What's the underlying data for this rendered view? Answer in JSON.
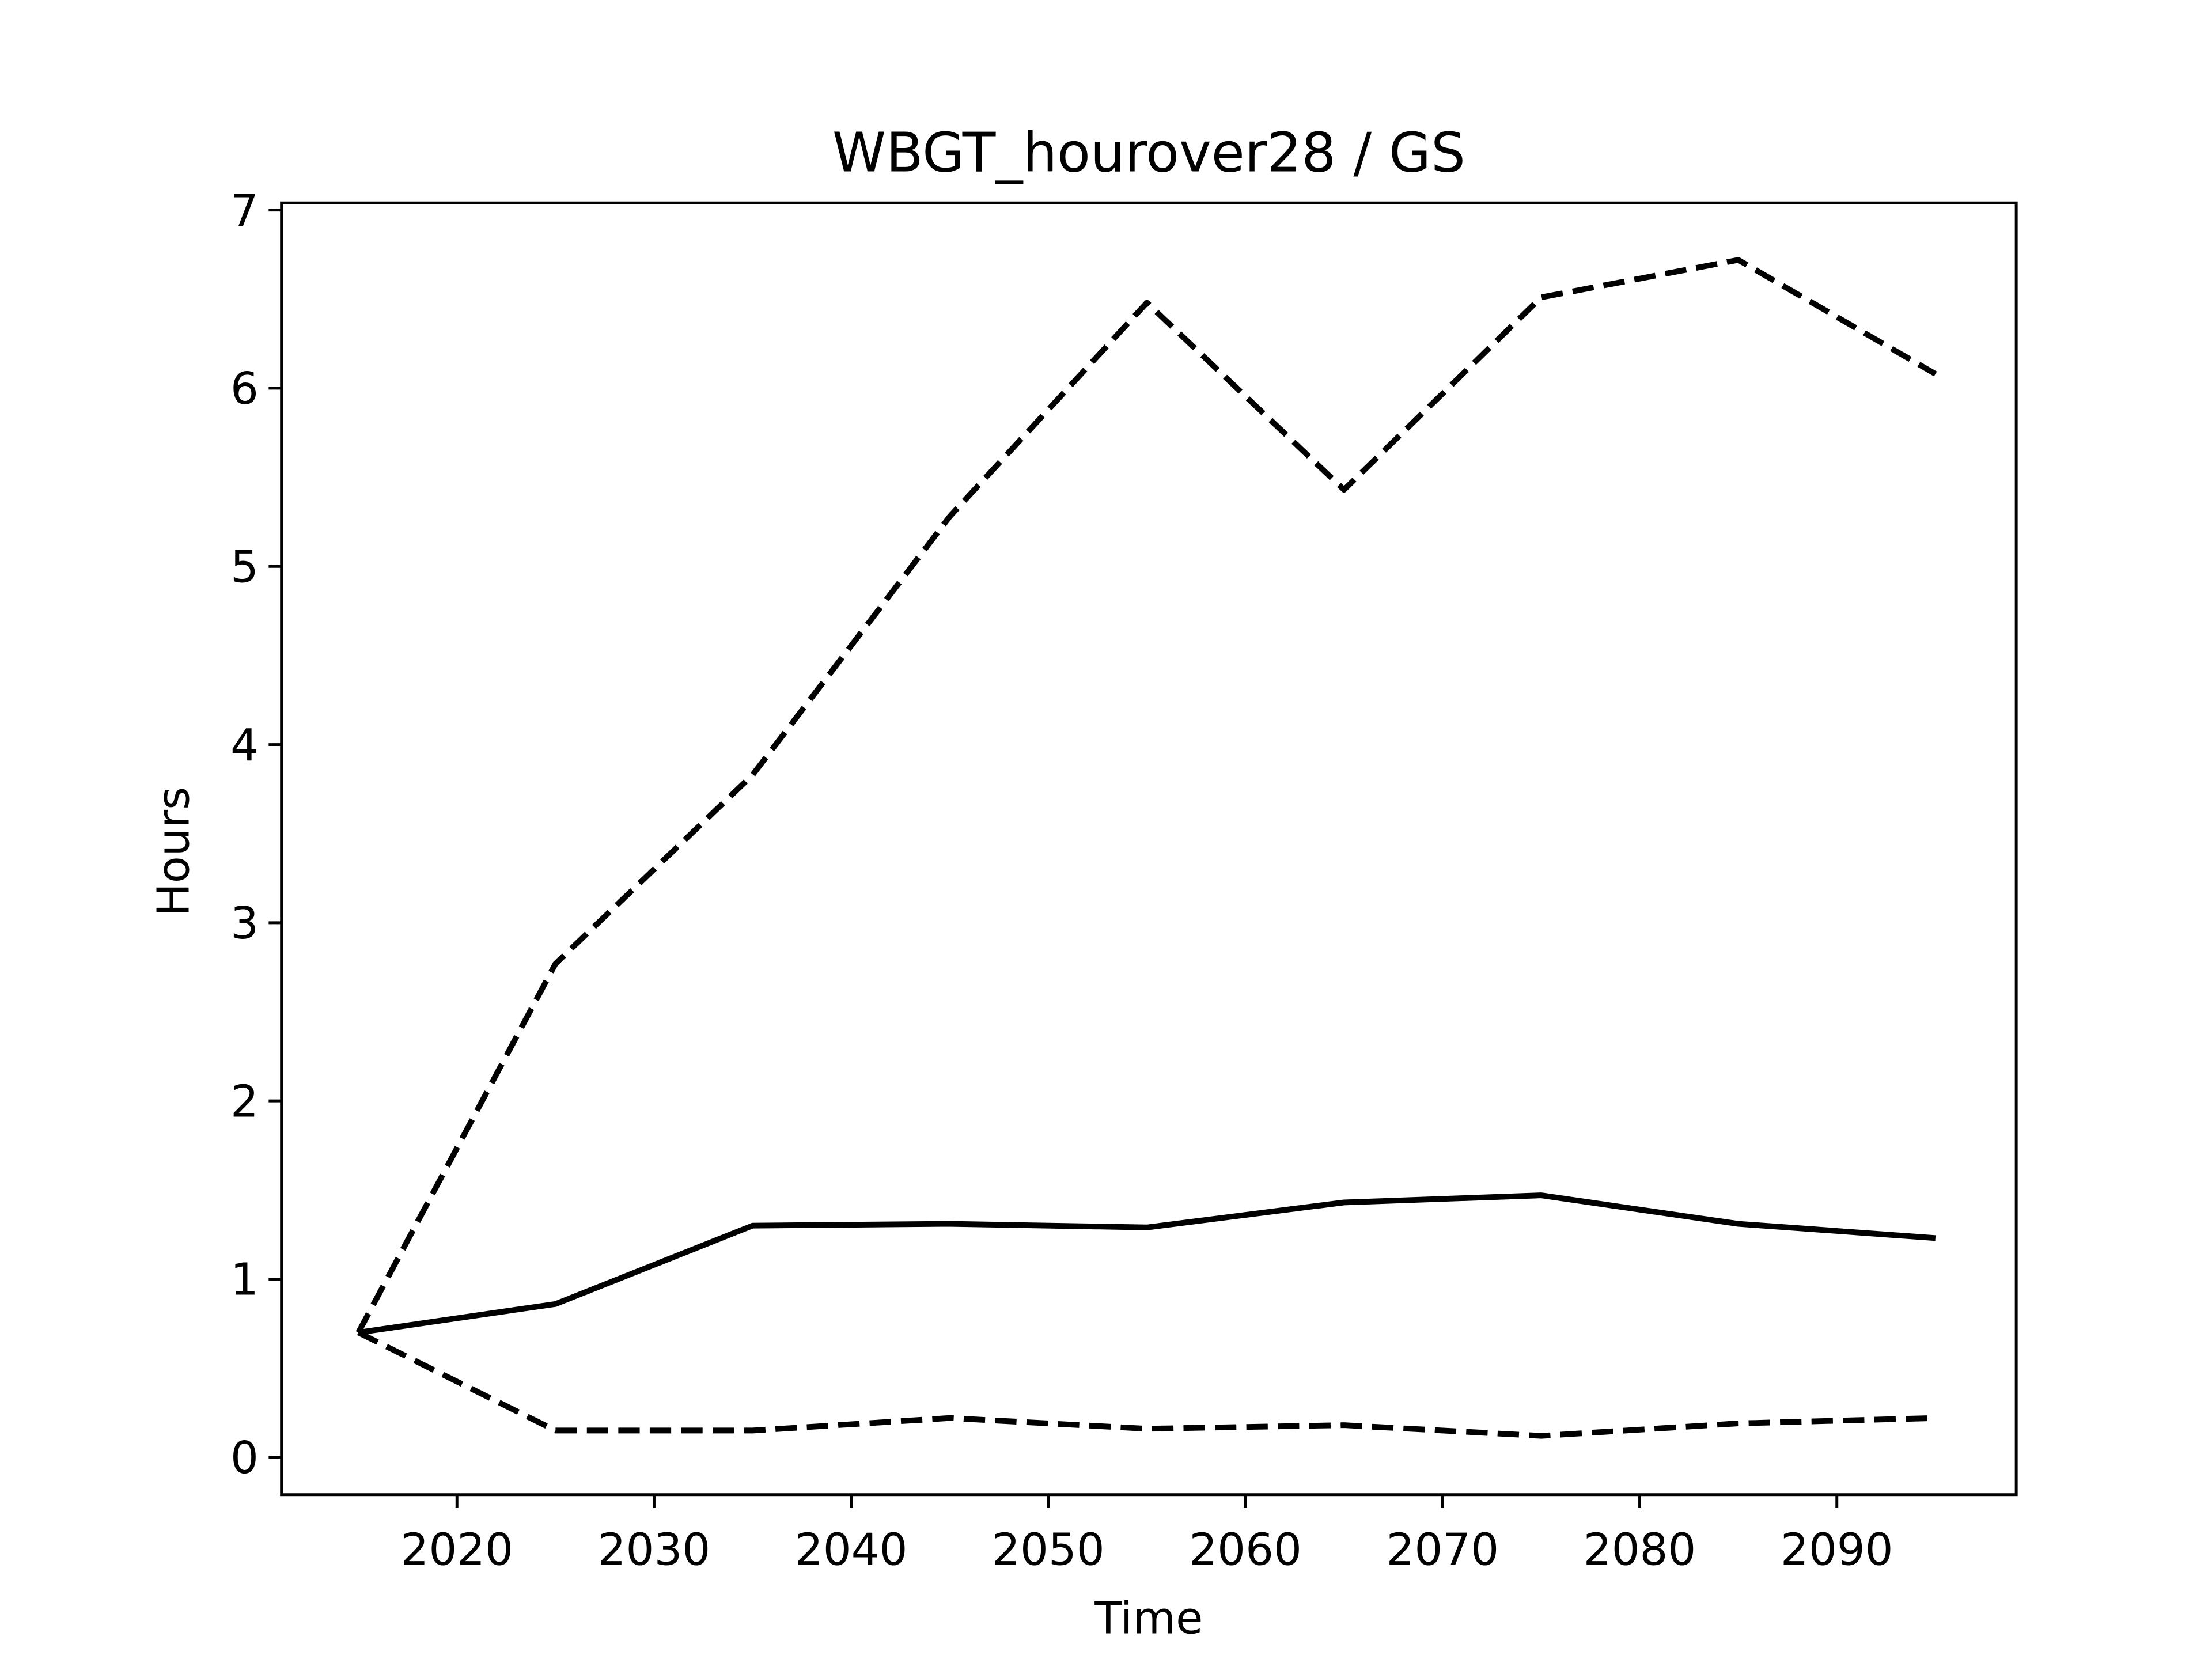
{
  "chart_data": {
    "type": "line",
    "title": "WBGT_hourover28 / GS",
    "x_label": "Time",
    "y_label": "Hours",
    "x": [
      2015,
      2025,
      2035,
      2045,
      2055,
      2065,
      2075,
      2085,
      2095
    ],
    "series": [
      {
        "color": "#000000",
        "dash": "solid",
        "values": [
          0.7,
          0.86,
          1.3,
          1.31,
          1.29,
          1.43,
          1.47,
          1.31,
          1.23
        ]
      },
      {
        "color": "#000000",
        "dash": "dashed",
        "values": [
          0.7,
          2.77,
          3.83,
          5.28,
          6.48,
          5.43,
          6.51,
          6.72,
          6.08
        ]
      },
      {
        "color": "#000000",
        "dash": "dashed",
        "values": [
          0.7,
          0.15,
          0.15,
          0.22,
          0.16,
          0.18,
          0.12,
          0.19,
          0.22
        ]
      }
    ],
    "xlim": [
      2011.1,
      2099.1
    ],
    "ylim": [
      -0.21,
      7.04
    ],
    "xticks": [
      2020,
      2030,
      2040,
      2050,
      2060,
      2070,
      2080,
      2090
    ],
    "yticks": [
      0,
      1,
      2,
      3,
      4,
      5,
      6,
      7
    ],
    "grid": false
  }
}
